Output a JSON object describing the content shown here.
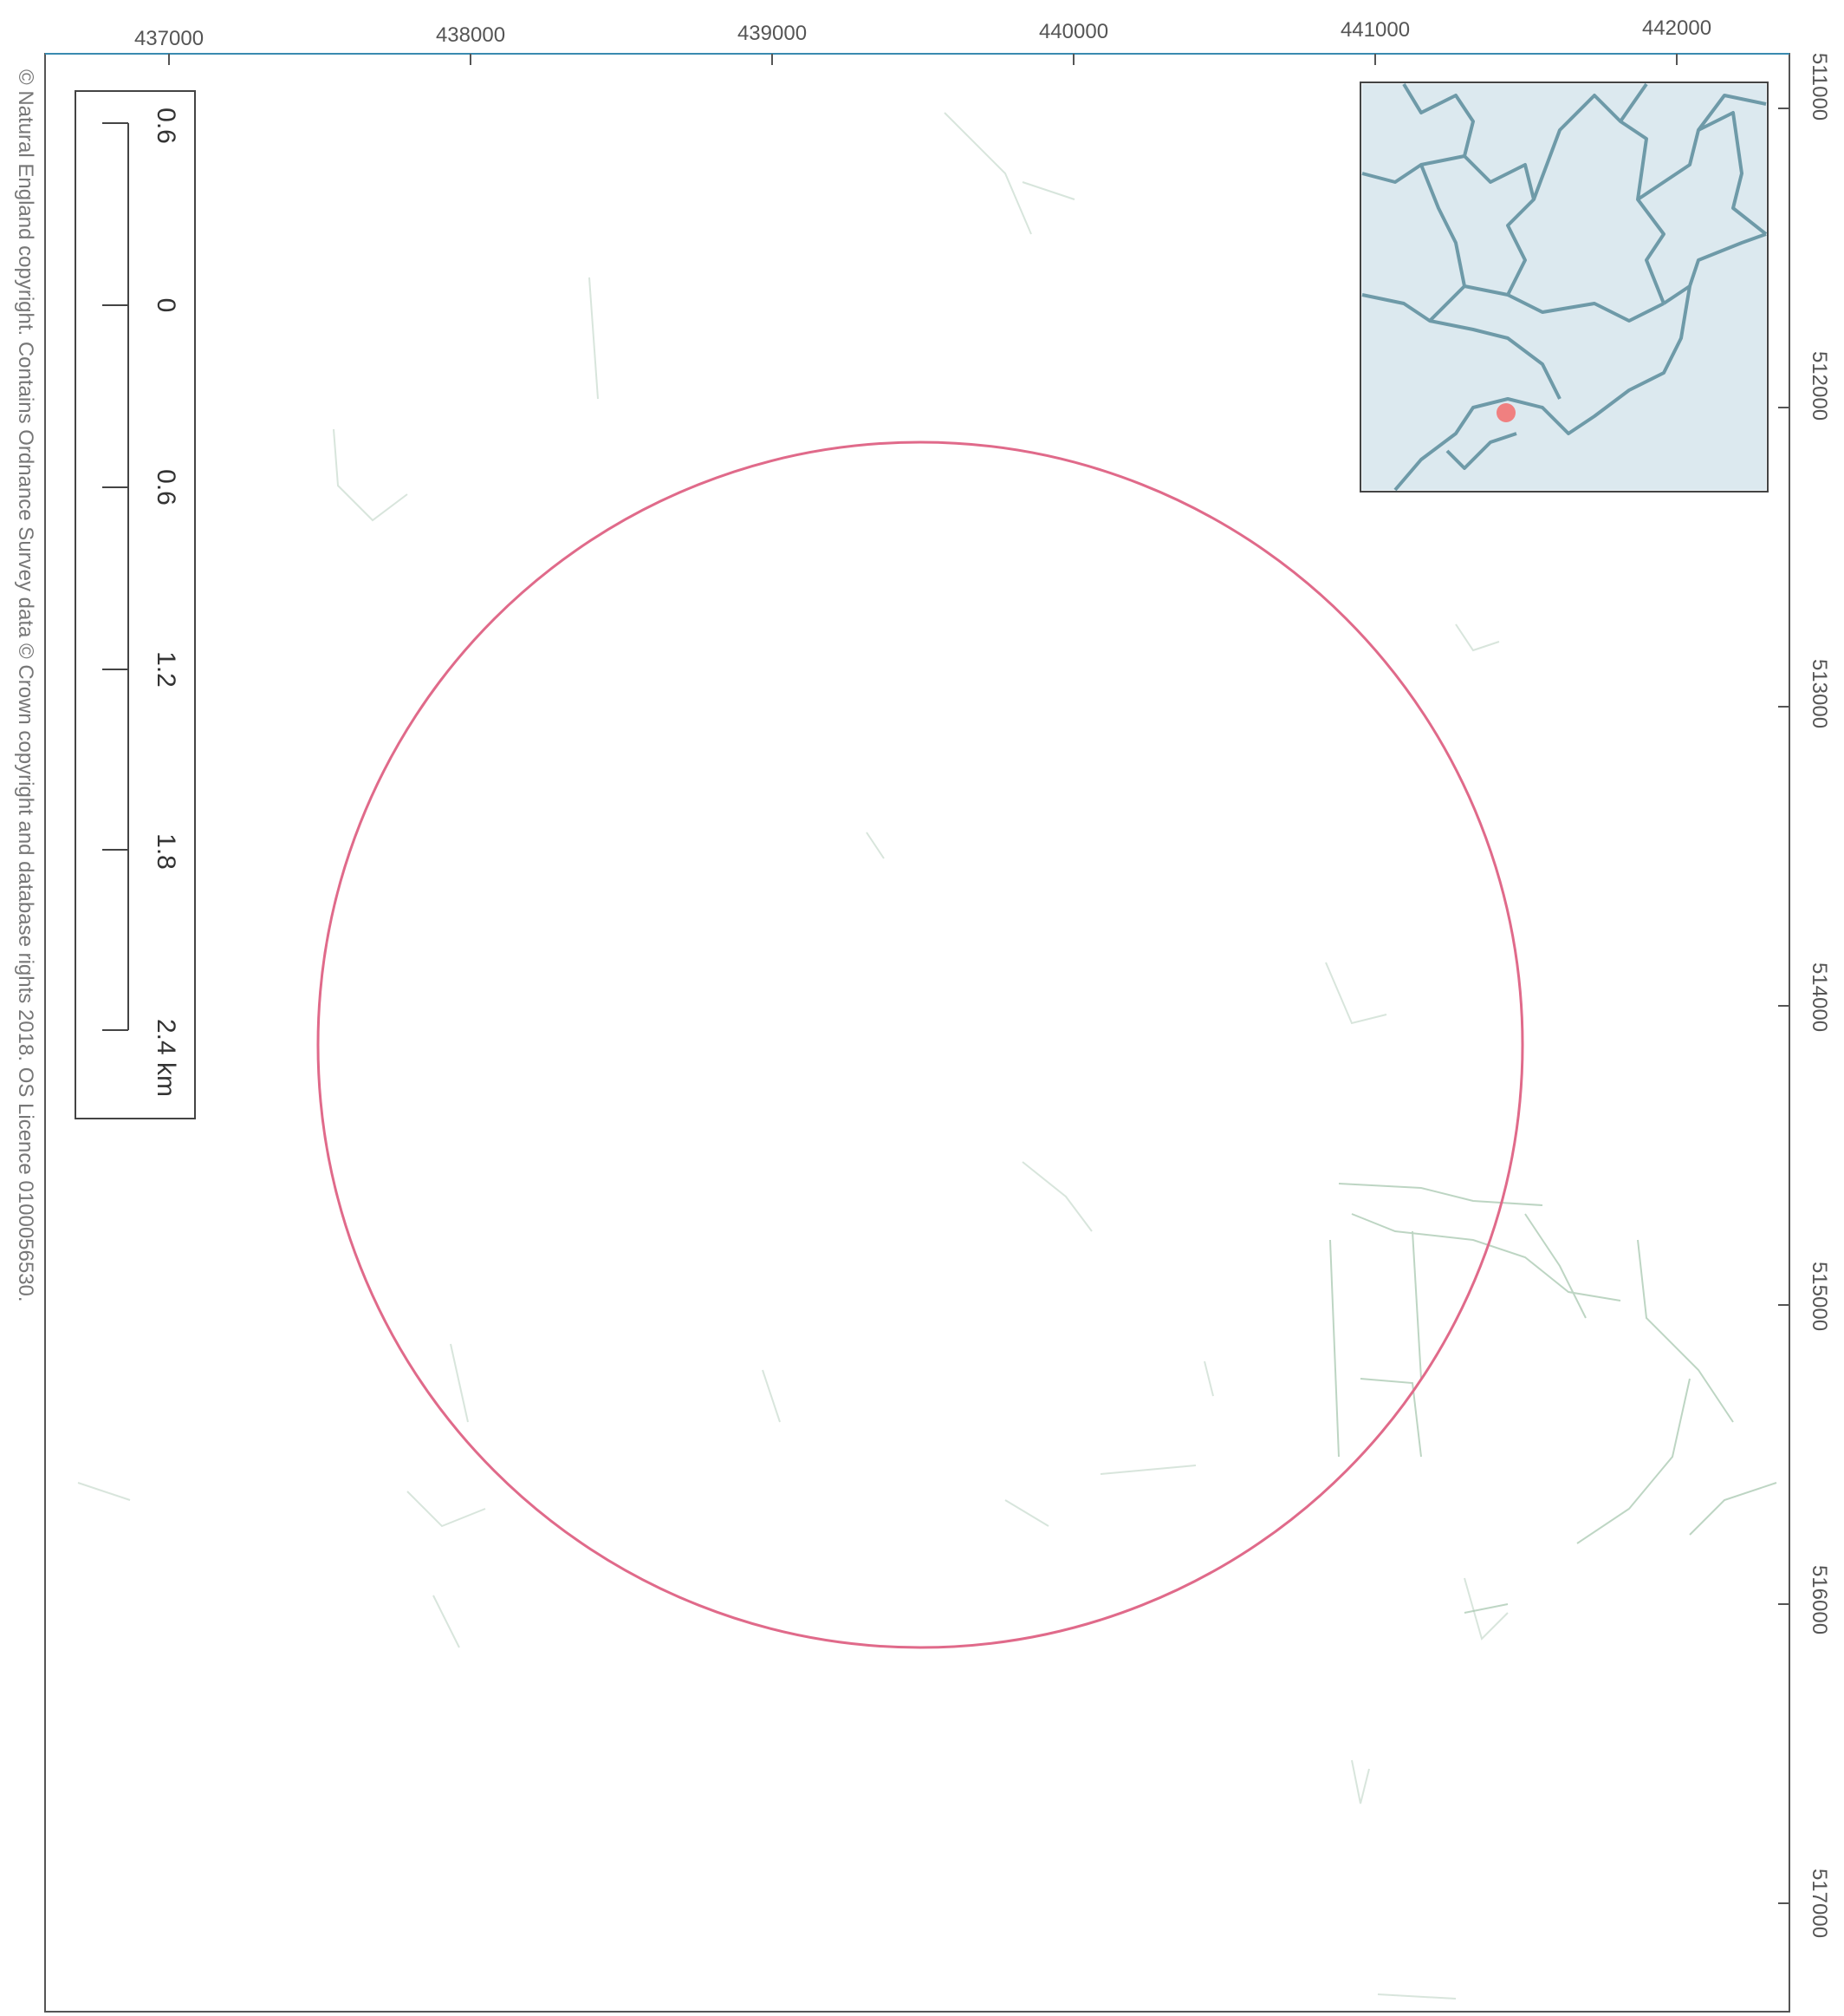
{
  "map": {
    "x_axis_labels": [
      "437000",
      "438000",
      "439000",
      "440000",
      "441000",
      "442000"
    ],
    "y_axis_labels": [
      "511000",
      "512000",
      "513000",
      "514000",
      "515000",
      "516000",
      "517000"
    ],
    "scale_bar": {
      "labels": [
        "0.6",
        "0",
        "0.6",
        "1.2",
        "1.8",
        "2.4 km"
      ]
    },
    "copyright": "© Natural England copyright. Contains Ordnance Survey data © Crown copyright and database rights 2018. OS Licence 0100056530.",
    "colors": {
      "buffer_circle": "#e06a8a",
      "frame": "#555555",
      "inset_land": "#dce9ef",
      "inset_boundary": "#6e9aa8",
      "site_marker": "#f08080",
      "features": "#a8c8b0"
    },
    "inset": {
      "site_marker_icon": "red-dot-icon"
    }
  }
}
